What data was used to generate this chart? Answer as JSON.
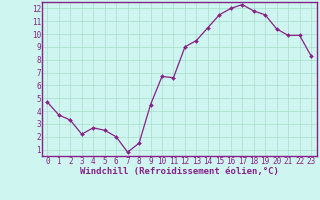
{
  "x": [
    0,
    1,
    2,
    3,
    4,
    5,
    6,
    7,
    8,
    9,
    10,
    11,
    12,
    13,
    14,
    15,
    16,
    17,
    18,
    19,
    20,
    21,
    22,
    23
  ],
  "y": [
    4.7,
    3.7,
    3.3,
    2.2,
    2.7,
    2.5,
    2.0,
    0.8,
    1.5,
    4.5,
    6.7,
    6.6,
    9.0,
    9.5,
    10.5,
    11.5,
    12.0,
    12.3,
    11.8,
    11.5,
    10.4,
    9.9,
    9.9,
    8.3
  ],
  "line_color": "#882288",
  "marker": "D",
  "markersize": 2.0,
  "linewidth": 0.9,
  "bg_color": "#cef5f0",
  "grid_color": "#aaddcc",
  "xlabel": "Windchill (Refroidissement éolien,°C)",
  "xlabel_color": "#882288",
  "xlabel_fontsize": 6.5,
  "tick_color": "#882288",
  "tick_fontsize": 5.5,
  "ylim": [
    0.5,
    12.5
  ],
  "yticks": [
    1,
    2,
    3,
    4,
    5,
    6,
    7,
    8,
    9,
    10,
    11,
    12
  ],
  "xlim": [
    -0.5,
    23.5
  ],
  "xticks": [
    0,
    1,
    2,
    3,
    4,
    5,
    6,
    7,
    8,
    9,
    10,
    11,
    12,
    13,
    14,
    15,
    16,
    17,
    18,
    19,
    20,
    21,
    22,
    23
  ],
  "spine_color": "#882288",
  "spine_linewidth": 1.0,
  "grid_linewidth": 0.5
}
